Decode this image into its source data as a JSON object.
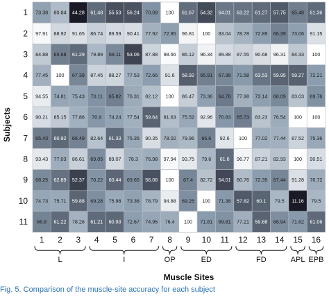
{
  "chart_data": {
    "type": "heatmap",
    "title": "",
    "xlabel": "Muscle Sites",
    "ylabel": "Subjects",
    "x_categories": [
      "1",
      "2",
      "3",
      "4",
      "5",
      "6",
      "7",
      "8",
      "9",
      "10",
      "11",
      "12",
      "13",
      "14",
      "15",
      "16"
    ],
    "y_categories": [
      "1",
      "2",
      "3",
      "4",
      "5",
      "6",
      "7",
      "8",
      "9",
      "10",
      "11"
    ],
    "groups": [
      {
        "label": "L",
        "sites": [
          "1",
          "3"
        ]
      },
      {
        "label": "I",
        "sites": [
          "4",
          "7"
        ]
      },
      {
        "label": "OP",
        "sites": [
          "8",
          "8"
        ]
      },
      {
        "label": "ED",
        "sites": [
          "9",
          "11"
        ]
      },
      {
        "label": "FD",
        "sites": [
          "12",
          "14"
        ]
      },
      {
        "label": "APL",
        "sites": [
          "15",
          "15"
        ]
      },
      {
        "label": "EPB",
        "sites": [
          "16",
          "16"
        ]
      }
    ],
    "values": [
      [
        73.38,
        80.84,
        44.28,
        61.48,
        55.53,
        56.24,
        70.09,
        100,
        61.67,
        54.32,
        64.01,
        63.22,
        61.27,
        57.75,
        65.48,
        61.36
      ],
      [
        97.91,
        88.92,
        91.65,
        86.74,
        89.59,
        90.41,
        77.92,
        72.85,
        96.81,
        100,
        83.04,
        78.78,
        72.89,
        66.39,
        73.06,
        91.15
      ],
      [
        84.88,
        65.68,
        61.29,
        79.89,
        68.11,
        53.06,
        87.88,
        98.66,
        86.12,
        96.34,
        89.88,
        87.55,
        90.68,
        96.31,
        84.33,
        100
      ],
      [
        77.45,
        100,
        67.39,
        87.45,
        88.27,
        77.53,
        72.66,
        91.6,
        58.92,
        65.91,
        67.98,
        71.58,
        63.53,
        59.95,
        59.27,
        72.21
      ],
      [
        94.55,
        74.81,
        75.43,
        70.11,
        65.82,
        76.31,
        82.12,
        100,
        86.47,
        73.36,
        64.76,
        77.98,
        73.14,
        68.09,
        83.03,
        69.76
      ],
      [
        90.21,
        85.15,
        77.86,
        70.9,
        74.24,
        77.54,
        59.64,
        81.63,
        75.52,
        92.96,
        70.83,
        65.73,
        83.23,
        76.54,
        100,
        100
      ],
      [
        65.43,
        60.92,
        66.49,
        82.64,
        61.33,
        75.35,
        90.35,
        78.02,
        79.96,
        66.6,
        92.6,
        100,
        77.02,
        77.44,
        87.52,
        75.36
      ],
      [
        93.43,
        77.03,
        86.61,
        69.05,
        89.07,
        78.3,
        76.98,
        97.94,
        93.75,
        79.6,
        61.6,
        96.77,
        87.21,
        82.93,
        100,
        90.51
      ],
      [
        68.25,
        62.89,
        52.37,
        70.22,
        60.44,
        69.65,
        56.06,
        100,
        67.4,
        82.72,
        54.01,
        80.76,
        72.35,
        67.44,
        91.28,
        76.72
      ],
      [
        74.73,
        75.71,
        59.88,
        69.28,
        75.98,
        73.36,
        78.79,
        94.88,
        69.25,
        100,
        71.38,
        57.82,
        60.1,
        79.5,
        11.16,
        79.5
      ],
      [
        66.8,
        61.22,
        78.26,
        61.21,
        60.93,
        72.67,
        74.95,
        76.4,
        100,
        71.81,
        69.81,
        77.21,
        59.68,
        68.94,
        71.62,
        61.06
      ]
    ],
    "color_scale": {
      "low": "#1a1a26",
      "mid": "#8a9cae",
      "high": "#ffffff",
      "range": [
        44,
        100
      ]
    },
    "caption": "Fig. 5.   Comparison of the muscle-site accuracy for each subject"
  }
}
